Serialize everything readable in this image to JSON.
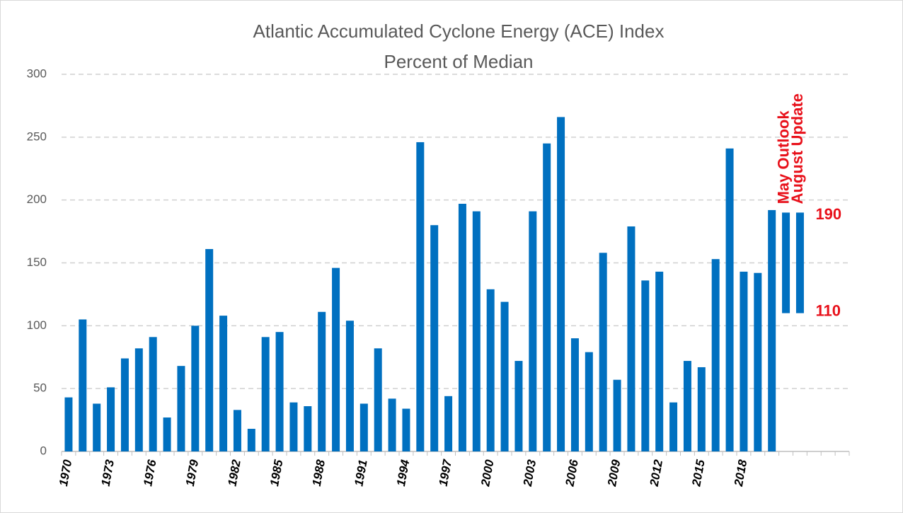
{
  "chart_data": {
    "type": "bar",
    "title": "Atlantic Accumulated Cyclone Energy (ACE) Index",
    "subtitle": "Percent of Median",
    "categories": [
      "1970",
      null,
      null,
      "1973",
      null,
      null,
      "1976",
      null,
      null,
      "1979",
      null,
      null,
      "1982",
      null,
      null,
      "1985",
      null,
      null,
      "1988",
      null,
      null,
      "1991",
      null,
      null,
      "1994",
      null,
      null,
      "1997",
      null,
      null,
      "2000",
      null,
      null,
      "2003",
      null,
      null,
      "2006",
      null,
      null,
      "2009",
      null,
      null,
      "2012",
      null,
      null,
      "2015",
      null,
      null,
      "2018",
      null,
      null,
      null,
      null,
      null,
      null,
      null
    ],
    "values": [
      43,
      105,
      38,
      51,
      74,
      82,
      91,
      27,
      68,
      100,
      161,
      108,
      33,
      18,
      91,
      95,
      39,
      36,
      111,
      146,
      104,
      38,
      82,
      42,
      34,
      246,
      180,
      44,
      197,
      191,
      129,
      119,
      72,
      191,
      245,
      266,
      90,
      79,
      158,
      57,
      179,
      136,
      143,
      39,
      72,
      67,
      153,
      241,
      143,
      142,
      192,
      null,
      null,
      null,
      null,
      null
    ],
    "ranges": [
      {
        "name": "May Outlook",
        "low": 110,
        "high": 190
      },
      {
        "name": "August Update",
        "low": 110,
        "high": 190
      }
    ],
    "color": "#0070c0",
    "range_label_color": "#e8101a",
    "ylim": [
      0,
      300
    ],
    "yticks": [
      0,
      50,
      100,
      150,
      200,
      250,
      300
    ],
    "grid": true
  }
}
